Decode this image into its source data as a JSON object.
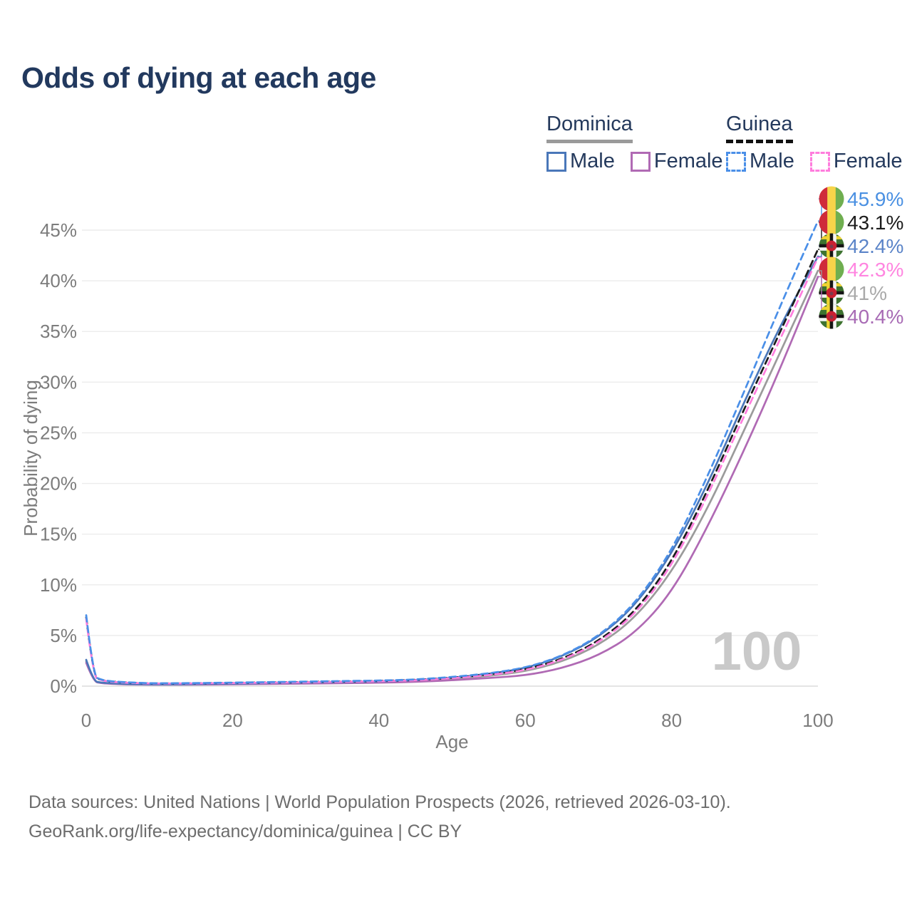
{
  "title": "Odds of dying at each age",
  "watermark": "100",
  "legend": {
    "groups": [
      {
        "name": "Dominica",
        "line_style": "solid",
        "underline_color": "#9a9a9a",
        "items": [
          {
            "label": "Male",
            "color": "#4a77b9"
          },
          {
            "label": "Female",
            "color": "#b06ab4"
          }
        ]
      },
      {
        "name": "Guinea",
        "line_style": "dashed",
        "underline_color": "#121212",
        "items": [
          {
            "label": "Male",
            "color": "#4a8fe8"
          },
          {
            "label": "Female",
            "color": "#ff7ddd"
          }
        ]
      }
    ]
  },
  "footer": {
    "line1": "Data sources: United Nations | World Population Prospects (2026, retrieved 2026-03-10).",
    "line2": "GeoRank.org/life-expectancy/dominica/guinea | CC BY"
  },
  "chart_data": {
    "type": "line",
    "title": "Odds of dying at each age",
    "xlabel": "Age",
    "ylabel": "Probability of dying",
    "xlim": [
      0,
      100
    ],
    "ylim": [
      0,
      45
    ],
    "xticks": [
      0,
      20,
      40,
      60,
      80,
      100
    ],
    "yticks": [
      0,
      5,
      10,
      15,
      20,
      25,
      30,
      35,
      40,
      45
    ],
    "ytick_suffix": "%",
    "grid": "horizontal",
    "legend_position": "top-right",
    "x": [
      0,
      1,
      2,
      3,
      5,
      8,
      10,
      15,
      20,
      25,
      30,
      35,
      40,
      45,
      50,
      55,
      60,
      65,
      70,
      75,
      80,
      85,
      90,
      95,
      100
    ],
    "series": [
      {
        "name": "Dominica (both sexes)",
        "country": "Dominica",
        "color": "#9b9b9b",
        "dash": false,
        "values": [
          2.45,
          0.48,
          0.33,
          0.28,
          0.2,
          0.17,
          0.16,
          0.18,
          0.22,
          0.26,
          0.3,
          0.34,
          0.4,
          0.5,
          0.7,
          1.0,
          1.45,
          2.4,
          4.0,
          6.7,
          11.2,
          17.6,
          25.4,
          33.2,
          41.0
        ]
      },
      {
        "name": "Dominica Female",
        "country": "Dominica",
        "color": "#b06ab4",
        "dash": false,
        "values": [
          2.3,
          0.45,
          0.3,
          0.25,
          0.18,
          0.15,
          0.14,
          0.16,
          0.18,
          0.21,
          0.25,
          0.29,
          0.34,
          0.42,
          0.58,
          0.8,
          1.05,
          1.75,
          3.0,
          5.2,
          9.2,
          15.8,
          23.4,
          31.6,
          40.4
        ]
      },
      {
        "name": "Dominica Male",
        "country": "Dominica",
        "color": "#4a77b9",
        "dash": false,
        "values": [
          2.6,
          0.5,
          0.35,
          0.3,
          0.22,
          0.18,
          0.17,
          0.2,
          0.25,
          0.3,
          0.35,
          0.4,
          0.46,
          0.58,
          0.82,
          1.2,
          1.75,
          2.9,
          4.8,
          7.9,
          13.0,
          20.0,
          28.2,
          35.8,
          42.4
        ]
      },
      {
        "name": "Guinea (both sexes)",
        "country": "Guinea",
        "color": "#1c1c1c",
        "dash": true,
        "values": [
          6.8,
          0.9,
          0.62,
          0.48,
          0.37,
          0.28,
          0.26,
          0.28,
          0.32,
          0.37,
          0.41,
          0.46,
          0.51,
          0.61,
          0.82,
          1.15,
          1.62,
          2.65,
          4.4,
          7.3,
          12.2,
          19.4,
          27.5,
          35.2,
          43.1
        ]
      },
      {
        "name": "Guinea Female",
        "country": "Guinea",
        "color": "#ff7ddd",
        "dash": true,
        "values": [
          6.6,
          0.85,
          0.6,
          0.45,
          0.35,
          0.27,
          0.25,
          0.27,
          0.3,
          0.34,
          0.38,
          0.43,
          0.48,
          0.57,
          0.78,
          1.08,
          1.55,
          2.55,
          4.25,
          7.05,
          11.8,
          18.9,
          26.8,
          34.5,
          42.3
        ]
      },
      {
        "name": "Guinea Male",
        "country": "Guinea",
        "color": "#4a8fe8",
        "dash": true,
        "values": [
          7.0,
          0.95,
          0.65,
          0.5,
          0.4,
          0.3,
          0.28,
          0.3,
          0.35,
          0.4,
          0.45,
          0.5,
          0.55,
          0.65,
          0.9,
          1.25,
          1.8,
          2.95,
          4.9,
          8.1,
          13.3,
          20.8,
          29.2,
          37.8,
          45.9
        ]
      }
    ],
    "end_labels": [
      {
        "text": "45.9%",
        "value": 45.9,
        "series": "Guinea Male",
        "country": "Guinea",
        "text_color": "#4a90e2",
        "line_color": "#4a8fe8"
      },
      {
        "text": "43.1%",
        "value": 43.1,
        "series": "Guinea (both sexes)",
        "country": "Guinea",
        "text_color": "#1c1c1c",
        "line_color": "#1c1c1c"
      },
      {
        "text": "42.4%",
        "value": 42.4,
        "series": "Dominica Male",
        "country": "Dominica",
        "text_color": "#5b84c8",
        "line_color": "#4a77b9"
      },
      {
        "text": "42.3%",
        "value": 42.3,
        "series": "Guinea Female",
        "country": "Guinea",
        "text_color": "#ff85e0",
        "line_color": "#ff7ddd"
      },
      {
        "text": "41%",
        "value": 41.0,
        "series": "Dominica (both sexes)",
        "country": "Dominica",
        "text_color": "#a9a9a9",
        "line_color": "#9b9b9b"
      },
      {
        "text": "40.4%",
        "value": 40.4,
        "series": "Dominica Female",
        "country": "Dominica",
        "text_color": "#a86bb5",
        "line_color": "#b06ab4"
      }
    ],
    "flag_colors": {
      "guinea": {
        "red": "#cf2b3a",
        "yellow": "#f7d44a",
        "green": "#6fae50"
      },
      "dominica": {
        "green": "#3d7330",
        "yellow": "#f0d432",
        "black": "#141414",
        "white": "#f4f4f4",
        "red": "#c82032",
        "parrot": "#7a3b4f"
      }
    }
  }
}
